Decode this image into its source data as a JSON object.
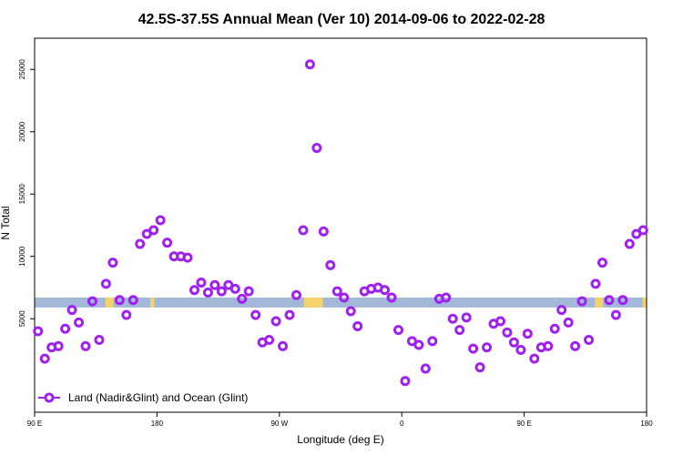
{
  "chart_data": {
    "type": "scatter",
    "title": "42.5S-37.5S Annual Mean (Ver 10)   2014-09-06 to 2022-02-28",
    "xlabel": "Longitude (deg E)",
    "ylabel": "N Total",
    "xlim": [
      0,
      450
    ],
    "ylim": [
      -2500,
      27500
    ],
    "x_ticks": [
      {
        "value": 0,
        "label": "90 E"
      },
      {
        "value": 90,
        "label": "180"
      },
      {
        "value": 180,
        "label": "90 W"
      },
      {
        "value": 270,
        "label": "0"
      },
      {
        "value": 360,
        "label": "90 E"
      },
      {
        "value": 450,
        "label": "180"
      }
    ],
    "y_ticks": [
      {
        "value": 5000,
        "label": "5000"
      },
      {
        "value": 10000,
        "label": "10000"
      },
      {
        "value": 15000,
        "label": "15000"
      },
      {
        "value": 20000,
        "label": "20000"
      },
      {
        "value": 25000,
        "label": "25000"
      }
    ],
    "colors": {
      "series": "#a020f0",
      "land_band": "#a3b8d8",
      "land_patch": "#f5d36b",
      "axis": "#000000"
    },
    "land_band": {
      "y_min": 5900,
      "y_max": 6700
    },
    "land_patches": [
      {
        "x_from": 52,
        "x_to": 58
      },
      {
        "x_from": 85,
        "x_to": 88
      },
      {
        "x_from": 198,
        "x_to": 212
      },
      {
        "x_from": 412,
        "x_to": 418
      },
      {
        "x_from": 447,
        "x_to": 450
      }
    ],
    "legend": {
      "label": "Land (Nadir&Glint) and Ocean (Glint)",
      "position": "bottom-left"
    },
    "series": [
      {
        "name": "Land (Nadir&Glint) and Ocean (Glint)",
        "points": [
          [
            2.5,
            4000
          ],
          [
            7.5,
            1800
          ],
          [
            12.5,
            2700
          ],
          [
            17.5,
            2800
          ],
          [
            22.5,
            4200
          ],
          [
            27.5,
            5700
          ],
          [
            32.5,
            4700
          ],
          [
            37.5,
            2800
          ],
          [
            42.5,
            6400
          ],
          [
            47.5,
            3300
          ],
          [
            52.5,
            7800
          ],
          [
            57.5,
            9500
          ],
          [
            62.5,
            6500
          ],
          [
            67.5,
            5300
          ],
          [
            72.5,
            6500
          ],
          [
            77.5,
            11000
          ],
          [
            82.5,
            11800
          ],
          [
            87.5,
            12100
          ],
          [
            92.5,
            12900
          ],
          [
            97.5,
            11100
          ],
          [
            102.5,
            10000
          ],
          [
            107.5,
            10000
          ],
          [
            112.5,
            9900
          ],
          [
            117.5,
            7300
          ],
          [
            122.5,
            7900
          ],
          [
            127.5,
            7100
          ],
          [
            132.5,
            7700
          ],
          [
            137.5,
            7200
          ],
          [
            142.5,
            7700
          ],
          [
            147.5,
            7400
          ],
          [
            152.5,
            6600
          ],
          [
            157.5,
            7200
          ],
          [
            162.5,
            5300
          ],
          [
            167.5,
            3100
          ],
          [
            172.5,
            3300
          ],
          [
            177.5,
            4800
          ],
          [
            182.5,
            2800
          ],
          [
            187.5,
            5300
          ],
          [
            192.5,
            6900
          ],
          [
            197.5,
            12100
          ],
          [
            202.5,
            25400
          ],
          [
            207.5,
            18700
          ],
          [
            212.5,
            12000
          ],
          [
            217.5,
            9300
          ],
          [
            222.5,
            7200
          ],
          [
            227.5,
            6700
          ],
          [
            232.5,
            5600
          ],
          [
            237.5,
            4400
          ],
          [
            242.5,
            7200
          ],
          [
            247.5,
            7400
          ],
          [
            252.5,
            7500
          ],
          [
            257.5,
            7300
          ],
          [
            262.5,
            6700
          ],
          [
            267.5,
            4100
          ],
          [
            272.5,
            0
          ],
          [
            277.5,
            3200
          ],
          [
            282.5,
            2900
          ],
          [
            287.5,
            1000
          ],
          [
            292.5,
            3200
          ],
          [
            297.5,
            6600
          ],
          [
            302.5,
            6700
          ],
          [
            307.5,
            5000
          ],
          [
            312.5,
            4100
          ],
          [
            317.5,
            5100
          ],
          [
            322.5,
            2600
          ],
          [
            327.5,
            1100
          ],
          [
            332.5,
            2700
          ],
          [
            337.5,
            4600
          ],
          [
            342.5,
            4800
          ],
          [
            347.5,
            3900
          ],
          [
            352.5,
            3100
          ],
          [
            357.5,
            2500
          ],
          [
            362.5,
            3800
          ],
          [
            367.5,
            1800
          ],
          [
            372.5,
            2700
          ],
          [
            377.5,
            2800
          ],
          [
            382.5,
            4200
          ],
          [
            387.5,
            5700
          ],
          [
            392.5,
            4700
          ],
          [
            397.5,
            2800
          ],
          [
            402.5,
            6400
          ],
          [
            407.5,
            3300
          ],
          [
            412.5,
            7800
          ],
          [
            417.5,
            9500
          ],
          [
            422.5,
            6500
          ],
          [
            427.5,
            5300
          ],
          [
            432.5,
            6500
          ],
          [
            437.5,
            11000
          ],
          [
            442.5,
            11800
          ],
          [
            447.5,
            12100
          ]
        ]
      }
    ]
  }
}
